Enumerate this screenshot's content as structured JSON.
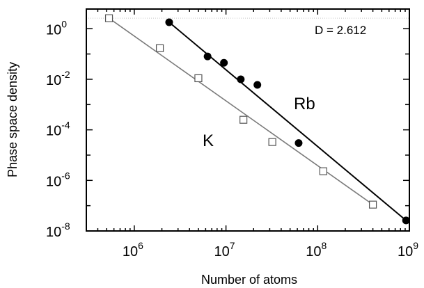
{
  "chart_data": {
    "type": "scatter",
    "xlabel": "Number of atoms",
    "ylabel": "Phase space density",
    "x_scale": "log",
    "y_scale": "log",
    "xlim": [
      300000,
      1000000000
    ],
    "ylim": [
      1e-08,
      6
    ],
    "x_ticks": [
      {
        "value": 1000000,
        "base": "10",
        "exp": "6"
      },
      {
        "value": 10000000,
        "base": "10",
        "exp": "7"
      },
      {
        "value": 100000000,
        "base": "10",
        "exp": "8"
      },
      {
        "value": 1000000000,
        "base": "10",
        "exp": "9"
      }
    ],
    "y_ticks": [
      {
        "value": 1,
        "label": "10",
        "exp": "0"
      },
      {
        "value": 0.01,
        "label": "10",
        "exp": "-2"
      },
      {
        "value": 0.0001,
        "label": "10",
        "exp": "-4"
      },
      {
        "value": 1e-06,
        "label": "10",
        "exp": "-6"
      },
      {
        "value": 1e-08,
        "label": "10",
        "exp": "-8"
      }
    ],
    "threshold_line": {
      "y": 2.612,
      "label": "D = 2.612",
      "color": "#c8c8c8"
    },
    "series": [
      {
        "name": "Rb",
        "marker": "filled-circle",
        "color": "#000000",
        "points": [
          [
            2400000,
            1.8
          ],
          [
            6300000,
            0.08
          ],
          [
            9500000,
            0.045
          ],
          [
            14500000,
            0.01
          ],
          [
            22000000,
            0.006
          ],
          [
            62000000,
            3e-05
          ],
          [
            920000000,
            2.6e-08
          ]
        ],
        "fit": [
          [
            2400000,
            1.8
          ],
          [
            920000000,
            2.6e-08
          ]
        ]
      },
      {
        "name": "K",
        "marker": "open-square",
        "color": "#7a7a7a",
        "points": [
          [
            530000,
            2.6
          ],
          [
            1900000,
            0.17
          ],
          [
            5000000,
            0.011
          ],
          [
            15500000,
            0.00025
          ],
          [
            32000000,
            3.3e-05
          ],
          [
            115000000,
            2.3e-06
          ],
          [
            400000000,
            1.1e-07
          ]
        ],
        "fit": [
          [
            530000,
            2.6
          ],
          [
            400000000,
            1.1e-07
          ]
        ]
      }
    ]
  }
}
